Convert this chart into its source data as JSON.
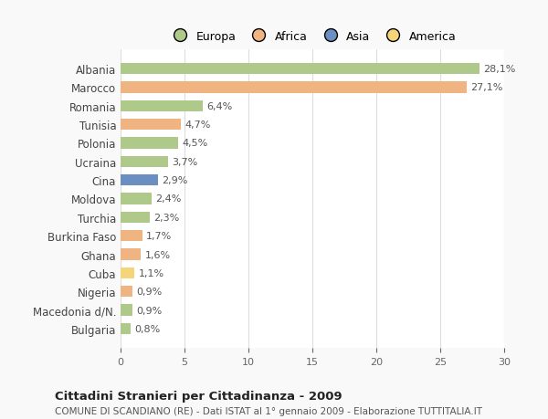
{
  "countries": [
    "Albania",
    "Marocco",
    "Romania",
    "Tunisia",
    "Polonia",
    "Ucraina",
    "Cina",
    "Moldova",
    "Turchia",
    "Burkina Faso",
    "Ghana",
    "Cuba",
    "Nigeria",
    "Macedonia d/N.",
    "Bulgaria"
  ],
  "values": [
    28.1,
    27.1,
    6.4,
    4.7,
    4.5,
    3.7,
    2.9,
    2.4,
    2.3,
    1.7,
    1.6,
    1.1,
    0.9,
    0.9,
    0.8
  ],
  "labels": [
    "28,1%",
    "27,1%",
    "6,4%",
    "4,7%",
    "4,5%",
    "3,7%",
    "2,9%",
    "2,4%",
    "2,3%",
    "1,7%",
    "1,6%",
    "1,1%",
    "0,9%",
    "0,9%",
    "0,8%"
  ],
  "colors": [
    "#aec98a",
    "#f0b482",
    "#aec98a",
    "#f0b482",
    "#aec98a",
    "#aec98a",
    "#6a8fc0",
    "#aec98a",
    "#aec98a",
    "#f0b482",
    "#f0b482",
    "#f5d57a",
    "#f0b482",
    "#aec98a",
    "#aec98a"
  ],
  "legend_labels": [
    "Europa",
    "Africa",
    "Asia",
    "America"
  ],
  "legend_colors": [
    "#aec98a",
    "#f0b482",
    "#6a8fc0",
    "#f5d57a"
  ],
  "title": "Cittadini Stranieri per Cittadinanza - 2009",
  "subtitle": "COMUNE DI SCANDIANO (RE) - Dati ISTAT al 1° gennaio 2009 - Elaborazione TUTTITALIA.IT",
  "xlim": [
    0,
    30
  ],
  "xticks": [
    0,
    5,
    10,
    15,
    20,
    25,
    30
  ],
  "background_color": "#f9f9f9",
  "plot_bg_color": "#ffffff"
}
